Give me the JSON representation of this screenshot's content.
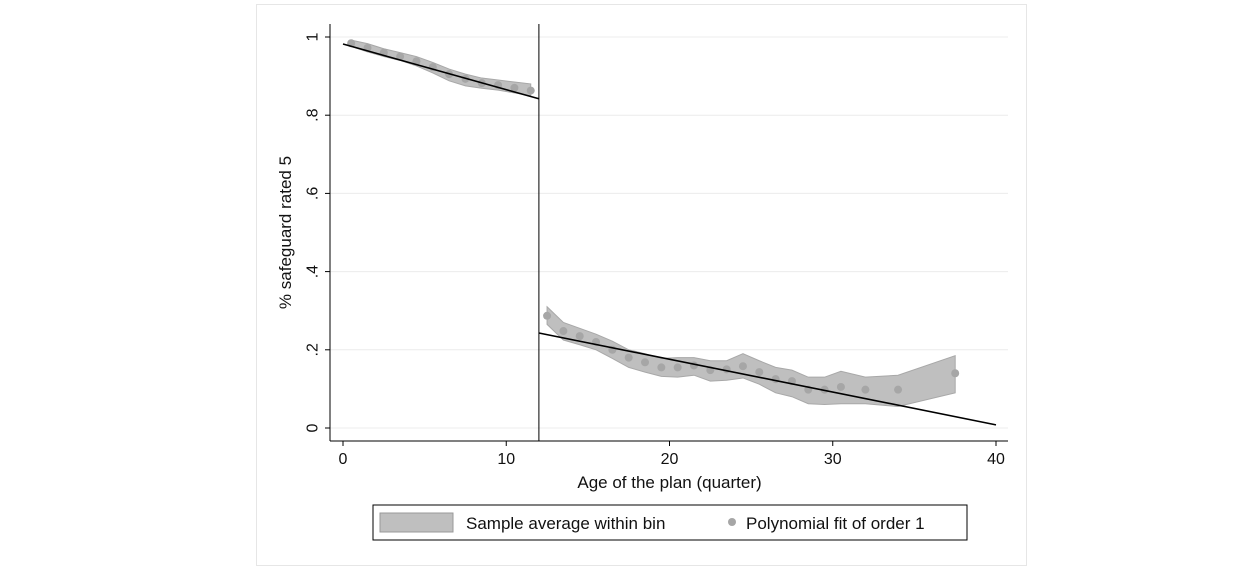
{
  "chart_data": {
    "type": "scatter",
    "title": "",
    "xlabel": "Age of the plan (quarter)",
    "ylabel": "% safeguard rated 5",
    "xlim": [
      0,
      40
    ],
    "ylim": [
      0,
      1
    ],
    "x_ticks": [
      0,
      10,
      20,
      30,
      40
    ],
    "x_tick_labels": [
      "0",
      "10",
      "20",
      "30",
      "40"
    ],
    "y_ticks": [
      0,
      0.2,
      0.4,
      0.6,
      0.8,
      1
    ],
    "y_tick_labels": [
      "0",
      ".2",
      ".4",
      ".6",
      ".8",
      "1"
    ],
    "grid": true,
    "cutoff": 12,
    "legend": {
      "position": "bottom",
      "entries": [
        "Sample average within bin",
        "Polynomial fit of order 1"
      ]
    },
    "series": [
      {
        "kind": "points",
        "x": [
          0.5,
          1.5,
          2.5,
          3.5,
          4.5,
          5.5,
          6.5,
          7.5,
          8.5,
          9.5,
          10.5,
          11.5,
          12.5,
          13.5,
          14.5,
          15.5,
          16.5,
          17.5,
          18.5,
          19.5,
          20.5,
          21.5,
          22.5,
          23.5,
          24.5,
          25.5,
          26.5,
          27.5,
          28.5,
          29.5,
          30.5,
          32.0,
          34.0,
          37.5
        ],
        "y": [
          0.984,
          0.972,
          0.96,
          0.95,
          0.938,
          0.923,
          0.905,
          0.893,
          0.882,
          0.877,
          0.87,
          0.863,
          0.287,
          0.248,
          0.235,
          0.22,
          0.2,
          0.18,
          0.168,
          0.155,
          0.155,
          0.16,
          0.148,
          0.15,
          0.158,
          0.143,
          0.125,
          0.12,
          0.098,
          0.098,
          0.105,
          0.098,
          0.098,
          0.14
        ]
      },
      {
        "kind": "band",
        "segments": [
          {
            "x": [
              0.5,
              1.5,
              2.5,
              3.5,
              4.5,
              5.5,
              6.5,
              7.5,
              8.5,
              9.5,
              10.5,
              11.5
            ],
            "upper": [
              0.992,
              0.983,
              0.97,
              0.96,
              0.95,
              0.935,
              0.918,
              0.905,
              0.895,
              0.89,
              0.885,
              0.88
            ],
            "lower": [
              0.976,
              0.962,
              0.95,
              0.94,
              0.926,
              0.908,
              0.888,
              0.875,
              0.869,
              0.864,
              0.857,
              0.85
            ]
          },
          {
            "x": [
              12.5,
              13.5,
              14.5,
              15.5,
              16.5,
              17.5,
              18.5,
              19.5,
              20.5,
              21.5,
              22.5,
              23.5,
              24.5,
              25.5,
              26.5,
              27.5,
              28.5,
              29.5,
              30.5,
              32.0,
              34.0,
              37.5
            ],
            "upper": [
              0.31,
              0.27,
              0.255,
              0.24,
              0.222,
              0.2,
              0.19,
              0.178,
              0.18,
              0.18,
              0.172,
              0.172,
              0.19,
              0.172,
              0.155,
              0.148,
              0.13,
              0.13,
              0.145,
              0.13,
              0.135,
              0.185
            ],
            "lower": [
              0.265,
              0.225,
              0.213,
              0.2,
              0.178,
              0.155,
              0.143,
              0.132,
              0.13,
              0.135,
              0.12,
              0.122,
              0.128,
              0.112,
              0.09,
              0.08,
              0.062,
              0.06,
              0.062,
              0.062,
              0.055,
              0.09
            ]
          }
        ]
      },
      {
        "kind": "fit",
        "segments": [
          {
            "x": [
              0,
              12
            ],
            "y": [
              0.982,
              0.842
            ]
          },
          {
            "x": [
              12,
              40
            ],
            "y": [
              0.243,
              0.008
            ]
          }
        ]
      }
    ]
  }
}
